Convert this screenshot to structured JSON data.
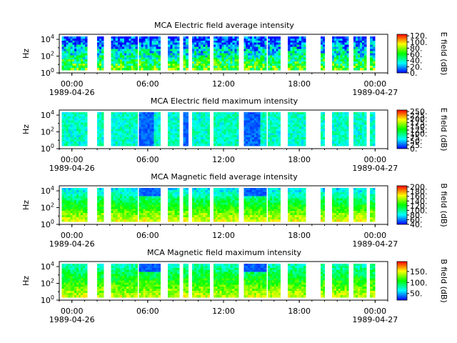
{
  "x_axis": {
    "ticks": [
      {
        "t": 0,
        "time": "00:00",
        "date": "1989-04-26"
      },
      {
        "t": 6,
        "time": "06:00",
        "date": ""
      },
      {
        "t": 12,
        "time": "12:00",
        "date": ""
      },
      {
        "t": 18,
        "time": "18:00",
        "date": ""
      },
      {
        "t": 24,
        "time": "00:00",
        "date": "1989-04-27"
      }
    ],
    "minor_every_hours": 1,
    "range_hours": [
      -1,
      25
    ]
  },
  "y_axis": {
    "label": "Hz",
    "ticks": [
      {
        "exp": 0,
        "base": "10",
        "sup": "0"
      },
      {
        "exp": 2,
        "base": "10",
        "sup": "2"
      },
      {
        "exp": 4,
        "base": "10",
        "sup": "4"
      }
    ],
    "range_log10": [
      0,
      4.6
    ]
  },
  "colormap": [
    "#0000ff",
    "#00ffff",
    "#00ff00",
    "#ffff00",
    "#ff0000"
  ],
  "chart_data": [
    {
      "type": "heatmap",
      "title": "MCA  Electric field average intensity",
      "colorbar": {
        "label": "E field (dB)",
        "range": [
          0,
          125
        ],
        "ticks": [
          0,
          20,
          40,
          60,
          80,
          100,
          120
        ],
        "tick_labels": [
          "0.",
          "20.",
          "40.",
          "60.",
          "80.",
          "100.",
          "120."
        ]
      },
      "data_intervals_hours": [
        [
          -0.8,
          1.2
        ],
        [
          2.0,
          2.5
        ],
        [
          3.1,
          5.2
        ],
        [
          5.3,
          7.0
        ],
        [
          7.6,
          8.5
        ],
        [
          8.8,
          9.2
        ],
        [
          9.5,
          10.9
        ],
        [
          11.2,
          13.2
        ],
        [
          13.6,
          15.4
        ],
        [
          15.5,
          16.5
        ],
        [
          17.1,
          18.5
        ],
        [
          19.7,
          20.0
        ],
        [
          20.6,
          21.9
        ],
        [
          22.3,
          23.3
        ],
        [
          23.6,
          24.0
        ]
      ]
    },
    {
      "type": "heatmap",
      "title": "MCA  Electric field maximum intensity",
      "colorbar": {
        "label": "E field (dB)",
        "range": [
          0,
          260
        ],
        "ticks": [
          0,
          25,
          50,
          75,
          100,
          125,
          150,
          175,
          200,
          225,
          250
        ],
        "tick_labels": [
          "0.",
          "25.",
          "50.",
          "75.",
          "100.",
          "125.",
          "150.",
          "175.",
          "200.",
          "225.",
          "250."
        ]
      },
      "data_intervals_hours": [
        [
          -0.8,
          1.2
        ],
        [
          2.0,
          2.5
        ],
        [
          3.1,
          5.2
        ],
        [
          5.3,
          7.0
        ],
        [
          7.6,
          8.5
        ],
        [
          8.8,
          9.2
        ],
        [
          9.5,
          10.9
        ],
        [
          11.2,
          13.2
        ],
        [
          13.6,
          15.4
        ],
        [
          15.5,
          16.5
        ],
        [
          17.1,
          18.5
        ],
        [
          19.7,
          20.0
        ],
        [
          20.6,
          21.9
        ],
        [
          22.3,
          23.3
        ],
        [
          23.6,
          24.0
        ]
      ]
    },
    {
      "type": "heatmap",
      "title": "MCA  Magnetic field average intensity",
      "colorbar": {
        "label": "B field (dB)",
        "range": [
          40,
          205
        ],
        "ticks": [
          40,
          60,
          80,
          100,
          120,
          140,
          160,
          180,
          200
        ],
        "tick_labels": [
          "40.",
          "60.",
          "80.",
          "100.",
          "120.",
          "140.",
          "160.",
          "180.",
          "200."
        ]
      },
      "data_intervals_hours": [
        [
          -0.8,
          1.2
        ],
        [
          2.0,
          2.5
        ],
        [
          3.1,
          5.2
        ],
        [
          5.3,
          7.0
        ],
        [
          7.6,
          8.5
        ],
        [
          8.8,
          9.2
        ],
        [
          9.5,
          10.9
        ],
        [
          11.2,
          13.2
        ],
        [
          13.6,
          15.4
        ],
        [
          15.5,
          16.5
        ],
        [
          17.1,
          18.5
        ],
        [
          19.7,
          20.0
        ],
        [
          20.6,
          21.9
        ],
        [
          22.3,
          23.3
        ],
        [
          23.6,
          24.0
        ]
      ]
    },
    {
      "type": "heatmap",
      "title": "MCA  Magnetic field maximum intensity",
      "colorbar": {
        "label": "B field (dB)",
        "range": [
          20,
          195
        ],
        "ticks": [
          50,
          100,
          150
        ],
        "tick_labels": [
          "50.",
          "100.",
          "150."
        ]
      },
      "data_intervals_hours": [
        [
          -0.8,
          1.2
        ],
        [
          2.0,
          2.5
        ],
        [
          3.1,
          5.2
        ],
        [
          5.3,
          7.0
        ],
        [
          7.6,
          8.5
        ],
        [
          8.8,
          9.2
        ],
        [
          9.5,
          10.9
        ],
        [
          11.2,
          13.2
        ],
        [
          13.6,
          15.4
        ],
        [
          15.5,
          16.5
        ],
        [
          17.1,
          18.5
        ],
        [
          19.7,
          20.0
        ],
        [
          20.6,
          21.9
        ],
        [
          22.3,
          23.3
        ],
        [
          23.6,
          24.0
        ]
      ]
    }
  ]
}
